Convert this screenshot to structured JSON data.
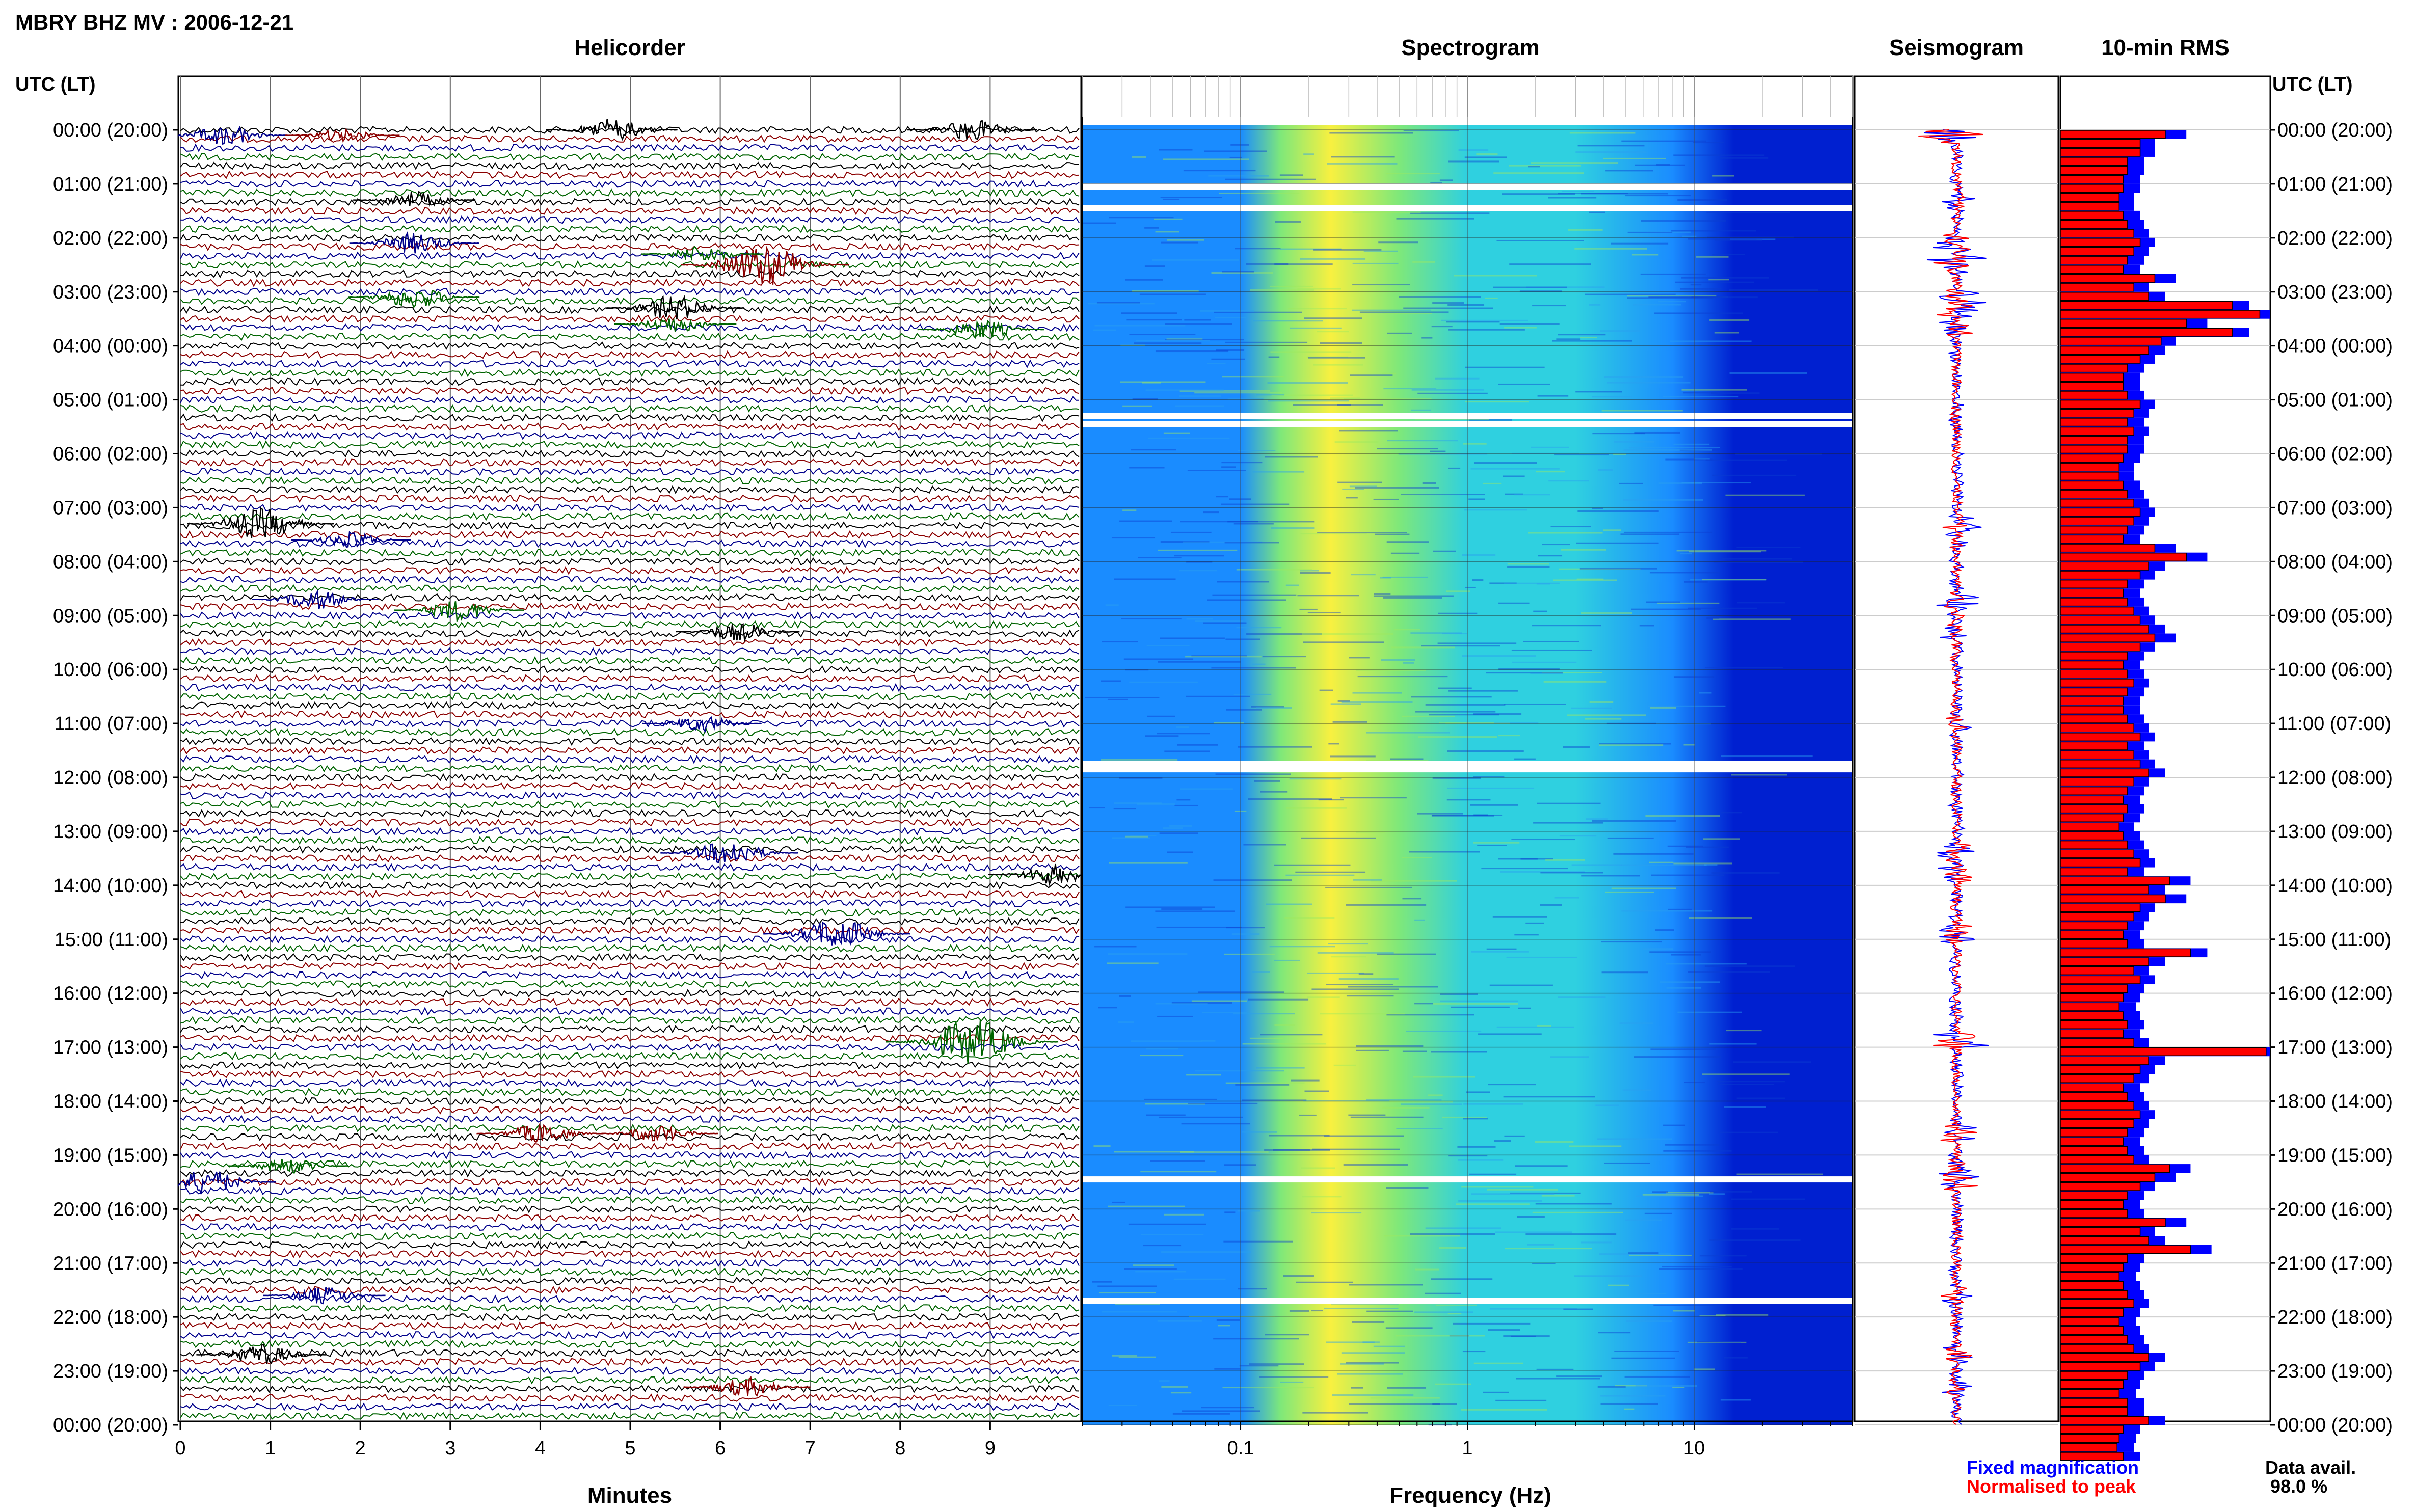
{
  "header": {
    "title": "MBRY BHZ MV : 2006-12-21"
  },
  "left_axis_label": "UTC (LT)",
  "right_axis_label": "UTC (LT)",
  "hours": [
    "00:00 (20:00)",
    "01:00 (21:00)",
    "02:00 (22:00)",
    "03:00 (23:00)",
    "04:00 (00:00)",
    "05:00 (01:00)",
    "06:00 (02:00)",
    "07:00 (03:00)",
    "08:00 (04:00)",
    "09:00 (05:00)",
    "10:00 (06:00)",
    "11:00 (07:00)",
    "12:00 (08:00)",
    "13:00 (09:00)",
    "14:00 (10:00)",
    "15:00 (11:00)",
    "16:00 (12:00)",
    "17:00 (13:00)",
    "18:00 (14:00)",
    "19:00 (15:00)",
    "20:00 (16:00)",
    "21:00 (17:00)",
    "22:00 (18:00)",
    "23:00 (19:00)",
    "00:00 (20:00)"
  ],
  "colors": {
    "black": "#000000",
    "red": "#8b0000",
    "blue": "#00008b",
    "green": "#006400",
    "rms_fixed": "#0000ff",
    "rms_peak": "#ff0000"
  },
  "chart_data": [
    {
      "type": "line",
      "title": "Helicorder",
      "xlabel": "Minutes",
      "x_ticks": [
        "0",
        "1",
        "2",
        "3",
        "4",
        "5",
        "6",
        "7",
        "8",
        "9"
      ],
      "xlim": [
        0,
        10
      ],
      "traces_per_hour": 6,
      "trace_colors": [
        "black",
        "red",
        "blue",
        "green"
      ],
      "events": [
        {
          "hour": 0.0,
          "minute": 4.8,
          "amp": 1.6,
          "color": "black"
        },
        {
          "hour": 0.0,
          "minute": 8.8,
          "amp": 1.5,
          "color": "black"
        },
        {
          "hour": 0.1,
          "minute": 0.5,
          "amp": 1.4,
          "color": "blue"
        },
        {
          "hour": 0.1,
          "minute": 1.8,
          "amp": 0.9,
          "color": "red"
        },
        {
          "hour": 1.3,
          "minute": 2.6,
          "amp": 1.2,
          "color": "black"
        },
        {
          "hour": 2.1,
          "minute": 2.6,
          "amp": 1.5,
          "color": "blue"
        },
        {
          "hour": 2.5,
          "minute": 6.5,
          "amp": 3.0,
          "color": "red"
        },
        {
          "hour": 2.3,
          "minute": 5.8,
          "amp": 1.2,
          "color": "green"
        },
        {
          "hour": 3.1,
          "minute": 2.6,
          "amp": 1.6,
          "color": "green"
        },
        {
          "hour": 3.3,
          "minute": 5.5,
          "amp": 1.8,
          "color": "black"
        },
        {
          "hour": 3.6,
          "minute": 5.5,
          "amp": 1.2,
          "color": "green"
        },
        {
          "hour": 3.7,
          "minute": 8.9,
          "amp": 1.4,
          "color": "green"
        },
        {
          "hour": 7.3,
          "minute": 0.9,
          "amp": 2.2,
          "color": "black"
        },
        {
          "hour": 7.6,
          "minute": 1.9,
          "amp": 1.1,
          "color": "blue"
        },
        {
          "hour": 8.7,
          "minute": 1.5,
          "amp": 1.4,
          "color": "blue"
        },
        {
          "hour": 8.9,
          "minute": 3.1,
          "amp": 1.5,
          "color": "green"
        },
        {
          "hour": 9.3,
          "minute": 6.2,
          "amp": 1.3,
          "color": "black"
        },
        {
          "hour": 11.0,
          "minute": 5.8,
          "amp": 1.1,
          "color": "blue"
        },
        {
          "hour": 13.4,
          "minute": 6.1,
          "amp": 1.8,
          "color": "blue"
        },
        {
          "hour": 13.8,
          "minute": 9.7,
          "amp": 1.5,
          "color": "black"
        },
        {
          "hour": 14.9,
          "minute": 7.3,
          "amp": 2.2,
          "color": "blue"
        },
        {
          "hour": 16.9,
          "minute": 8.8,
          "amp": 3.2,
          "color": "green"
        },
        {
          "hour": 18.6,
          "minute": 4.0,
          "amp": 1.4,
          "color": "red"
        },
        {
          "hour": 18.6,
          "minute": 5.3,
          "amp": 1.2,
          "color": "red"
        },
        {
          "hour": 19.5,
          "minute": 0.3,
          "amp": 1.8,
          "color": "blue"
        },
        {
          "hour": 19.2,
          "minute": 1.2,
          "amp": 1.1,
          "color": "green"
        },
        {
          "hour": 21.6,
          "minute": 1.6,
          "amp": 1.2,
          "color": "blue"
        },
        {
          "hour": 22.7,
          "minute": 0.9,
          "amp": 1.5,
          "color": "black"
        },
        {
          "hour": 23.3,
          "minute": 6.3,
          "amp": 1.4,
          "color": "red"
        }
      ]
    },
    {
      "type": "heatmap",
      "title": "Spectrogram",
      "xlabel": "Frequency (Hz)",
      "x_scale": "log",
      "xlim": [
        0.02,
        50
      ],
      "x_ticks": [
        "0.1",
        "1",
        "10"
      ],
      "x_tick_values": [
        0.1,
        1,
        10
      ],
      "data_gaps_hours": [
        1.05,
        1.45,
        5.3,
        5.45,
        11.75,
        11.85,
        19.45,
        21.7
      ],
      "intensity_profile": [
        {
          "freq": 0.02,
          "level": 0.35
        },
        {
          "freq": 0.1,
          "level": 0.35
        },
        {
          "freq": 0.15,
          "level": 0.55
        },
        {
          "freq": 0.25,
          "level": 0.85
        },
        {
          "freq": 0.5,
          "level": 0.6
        },
        {
          "freq": 1.0,
          "level": 0.45
        },
        {
          "freq": 3.0,
          "level": 0.4
        },
        {
          "freq": 8.0,
          "level": 0.3
        },
        {
          "freq": 15.0,
          "level": 0.15
        },
        {
          "freq": 50.0,
          "level": 0.05
        }
      ]
    },
    {
      "type": "line",
      "title": "Seismogram",
      "legend": [
        {
          "name": "Fixed magnification",
          "color": "rms_fixed"
        },
        {
          "name": "Normalised to peak",
          "color": "rms_peak"
        }
      ]
    },
    {
      "type": "bar",
      "title": "10-min RMS",
      "orientation": "horizontal",
      "bins_per_hour": 6,
      "rms_fixed": [
        0.6,
        0.45,
        0.45,
        0.4,
        0.4,
        0.38,
        0.38,
        0.35,
        0.35,
        0.38,
        0.4,
        0.42,
        0.45,
        0.42,
        0.4,
        0.38,
        0.55,
        0.42,
        0.5,
        0.9,
        1.0,
        0.7,
        0.9,
        0.55,
        0.5,
        0.45,
        0.4,
        0.38,
        0.38,
        0.4,
        0.45,
        0.42,
        0.4,
        0.42,
        0.4,
        0.4,
        0.38,
        0.35,
        0.35,
        0.38,
        0.4,
        0.42,
        0.45,
        0.42,
        0.4,
        0.38,
        0.55,
        0.7,
        0.5,
        0.45,
        0.4,
        0.38,
        0.4,
        0.42,
        0.45,
        0.5,
        0.55,
        0.45,
        0.4,
        0.38,
        0.4,
        0.42,
        0.4,
        0.38,
        0.38,
        0.4,
        0.42,
        0.45,
        0.4,
        0.42,
        0.45,
        0.5,
        0.42,
        0.4,
        0.38,
        0.4,
        0.38,
        0.35,
        0.38,
        0.4,
        0.42,
        0.45,
        0.4,
        0.62,
        0.5,
        0.6,
        0.45,
        0.42,
        0.4,
        0.38,
        0.4,
        0.7,
        0.5,
        0.42,
        0.45,
        0.4,
        0.38,
        0.36,
        0.38,
        0.4,
        0.38,
        0.42,
        1.0,
        0.5,
        0.45,
        0.42,
        0.38,
        0.4,
        0.42,
        0.45,
        0.42,
        0.4,
        0.38,
        0.4,
        0.42,
        0.62,
        0.55,
        0.45,
        0.4,
        0.38,
        0.4,
        0.6,
        0.45,
        0.5,
        0.72,
        0.4,
        0.38,
        0.36,
        0.38,
        0.4,
        0.42,
        0.38,
        0.36,
        0.38,
        0.4,
        0.42,
        0.5,
        0.45,
        0.4,
        0.38,
        0.36,
        0.4,
        0.4,
        0.5,
        0.38,
        0.36,
        0.35,
        0.38
      ],
      "rms_peak": [
        0.5,
        0.38,
        0.38,
        0.32,
        0.32,
        0.3,
        0.3,
        0.28,
        0.28,
        0.3,
        0.32,
        0.35,
        0.38,
        0.35,
        0.32,
        0.3,
        0.45,
        0.35,
        0.42,
        0.82,
        0.95,
        0.6,
        0.82,
        0.48,
        0.42,
        0.38,
        0.32,
        0.3,
        0.3,
        0.32,
        0.38,
        0.35,
        0.32,
        0.35,
        0.32,
        0.32,
        0.3,
        0.28,
        0.28,
        0.3,
        0.32,
        0.35,
        0.38,
        0.35,
        0.32,
        0.3,
        0.45,
        0.6,
        0.42,
        0.38,
        0.32,
        0.3,
        0.32,
        0.35,
        0.38,
        0.42,
        0.45,
        0.38,
        0.32,
        0.3,
        0.32,
        0.35,
        0.32,
        0.3,
        0.3,
        0.32,
        0.35,
        0.38,
        0.32,
        0.35,
        0.38,
        0.42,
        0.35,
        0.32,
        0.3,
        0.32,
        0.3,
        0.28,
        0.3,
        0.32,
        0.35,
        0.38,
        0.32,
        0.52,
        0.42,
        0.5,
        0.38,
        0.35,
        0.32,
        0.3,
        0.32,
        0.62,
        0.42,
        0.35,
        0.38,
        0.32,
        0.3,
        0.28,
        0.3,
        0.32,
        0.3,
        0.35,
        0.98,
        0.42,
        0.38,
        0.35,
        0.3,
        0.32,
        0.35,
        0.38,
        0.35,
        0.32,
        0.3,
        0.32,
        0.35,
        0.52,
        0.45,
        0.38,
        0.32,
        0.3,
        0.32,
        0.5,
        0.38,
        0.42,
        0.62,
        0.32,
        0.3,
        0.28,
        0.3,
        0.32,
        0.35,
        0.3,
        0.28,
        0.3,
        0.32,
        0.35,
        0.42,
        0.38,
        0.32,
        0.3,
        0.28,
        0.32,
        0.32,
        0.42,
        0.3,
        0.28,
        0.27,
        0.3
      ]
    }
  ],
  "panels": {
    "helicorder": "Helicorder",
    "spectrogram": "Spectrogram",
    "seismogram": "Seismogram",
    "rms": "10-min RMS"
  },
  "axis_labels": {
    "minutes": "Minutes",
    "frequency": "Frequency (Hz)"
  },
  "legend": {
    "fixed": "Fixed magnification",
    "peak": "Normalised to peak"
  },
  "availability": {
    "label": "Data avail.",
    "value": "98.0 %"
  }
}
